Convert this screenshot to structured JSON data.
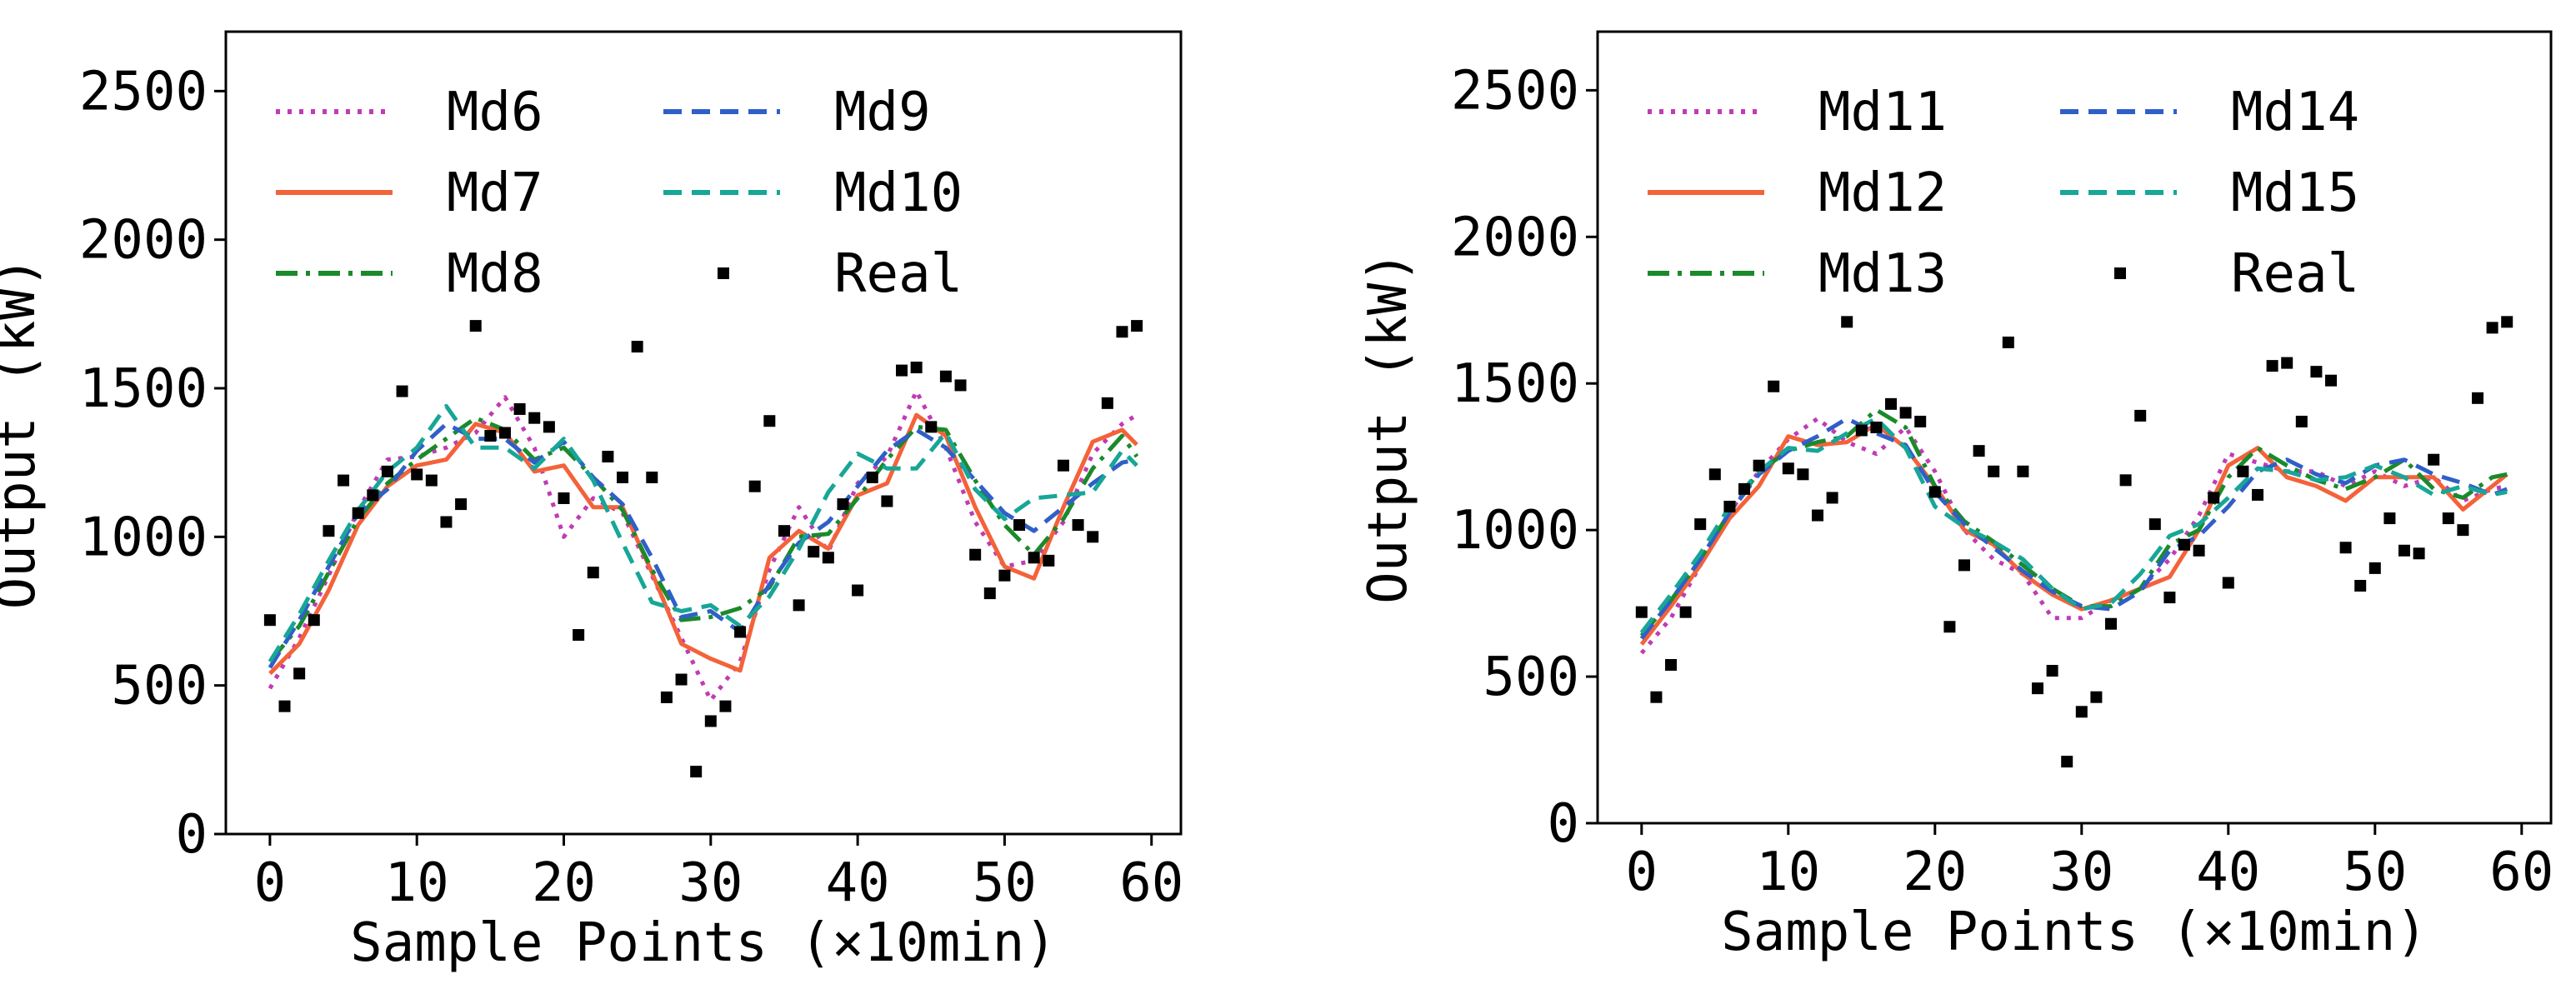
{
  "colors": {
    "Md6": "#c03bb5",
    "Md7": "#f4623a",
    "Md8": "#1a8a2a",
    "Md9": "#2f5fc8",
    "Md10": "#17a697",
    "Md11": "#c03bb5",
    "Md12": "#f4623a",
    "Md13": "#1a8a2a",
    "Md14": "#2f5fc8",
    "Md15": "#17a697",
    "Real": "#000000"
  },
  "chart_data": [
    {
      "type": "line",
      "title": "",
      "xlabel": "Sample Points (×10min)",
      "ylabel": "Output (kW)",
      "xlim": [
        -3,
        62
      ],
      "ylim": [
        0,
        2700
      ],
      "xticks": [
        "0",
        "10",
        "20",
        "30",
        "40",
        "50",
        "60"
      ],
      "yticks": [
        "0",
        "500",
        "1000",
        "1500",
        "2000",
        "2500"
      ],
      "grid": false,
      "legend": {
        "position": "top-left",
        "columns": 2,
        "entries": [
          {
            "label": "Md6",
            "style": "dotted"
          },
          {
            "label": "Md9",
            "style": "dashed"
          },
          {
            "label": "Md7",
            "style": "solid"
          },
          {
            "label": "Md10",
            "style": "dashed"
          },
          {
            "label": "Md8",
            "style": "dashdot"
          },
          {
            "label": "Real",
            "style": "marker"
          }
        ]
      },
      "scatter": {
        "name": "Real",
        "x": [
          0,
          1,
          2,
          3,
          4,
          5,
          6,
          7,
          8,
          9,
          10,
          11,
          12,
          13,
          14,
          15,
          16,
          17,
          18,
          19,
          20,
          21,
          22,
          23,
          24,
          25,
          26,
          27,
          28,
          29,
          30,
          31,
          32,
          33,
          34,
          35,
          36,
          37,
          38,
          39,
          40,
          41,
          42,
          43,
          44,
          45,
          46,
          47,
          48,
          49,
          50,
          51,
          52,
          53,
          54,
          55,
          56,
          57,
          58,
          59
        ],
        "y": [
          720,
          430,
          540,
          720,
          1020,
          1190,
          1080,
          1140,
          1220,
          1490,
          1210,
          1190,
          1050,
          1110,
          1710,
          1340,
          1350,
          1430,
          1400,
          1370,
          1130,
          670,
          880,
          1270,
          1200,
          1640,
          1200,
          460,
          520,
          210,
          380,
          430,
          680,
          1170,
          1390,
          1020,
          770,
          950,
          930,
          1110,
          820,
          1200,
          1120,
          1560,
          1570,
          1370,
          1540,
          1510,
          940,
          810,
          870,
          1040,
          930,
          920,
          1240,
          1040,
          1000,
          1450,
          1690,
          1710
        ]
      },
      "series": [
        {
          "name": "Md6",
          "style": "dotted",
          "x": [
            0,
            2,
            4,
            6,
            8,
            10,
            12,
            14,
            16,
            18,
            20,
            22,
            24,
            26,
            28,
            30,
            32,
            34,
            36,
            38,
            40,
            42,
            44,
            46,
            48,
            50,
            52,
            54,
            56,
            58,
            59
          ],
          "y": [
            490,
            660,
            870,
            1090,
            1260,
            1270,
            1300,
            1350,
            1470,
            1300,
            1000,
            1130,
            1080,
            870,
            660,
            450,
            580,
            890,
            1100,
            950,
            1180,
            1270,
            1490,
            1300,
            1050,
            900,
            920,
            1050,
            1280,
            1380,
            1410
          ]
        },
        {
          "name": "Md7",
          "style": "solid",
          "x": [
            0,
            2,
            4,
            6,
            8,
            10,
            12,
            14,
            16,
            18,
            20,
            22,
            24,
            26,
            28,
            30,
            32,
            34,
            36,
            38,
            40,
            42,
            44,
            46,
            48,
            50,
            52,
            54,
            56,
            58,
            59
          ],
          "y": [
            540,
            640,
            820,
            1040,
            1170,
            1240,
            1260,
            1380,
            1350,
            1220,
            1240,
            1100,
            1100,
            880,
            640,
            590,
            550,
            930,
            1020,
            960,
            1140,
            1180,
            1410,
            1340,
            1100,
            900,
            860,
            1100,
            1320,
            1360,
            1310
          ]
        },
        {
          "name": "Md8",
          "style": "dashdot",
          "x": [
            0,
            2,
            4,
            6,
            8,
            10,
            12,
            14,
            16,
            18,
            20,
            22,
            24,
            26,
            28,
            30,
            32,
            34,
            36,
            38,
            40,
            42,
            44,
            46,
            48,
            50,
            52,
            54,
            56,
            58,
            59
          ],
          "y": [
            580,
            700,
            880,
            1060,
            1180,
            1260,
            1330,
            1400,
            1360,
            1260,
            1300,
            1200,
            1090,
            890,
            720,
            730,
            760,
            830,
            1000,
            1010,
            1130,
            1260,
            1370,
            1360,
            1190,
            1040,
            940,
            1060,
            1230,
            1340,
            1270
          ]
        },
        {
          "name": "Md9",
          "style": "dashed",
          "x": [
            0,
            2,
            4,
            6,
            8,
            10,
            12,
            14,
            16,
            18,
            20,
            22,
            24,
            26,
            28,
            30,
            32,
            34,
            36,
            38,
            40,
            42,
            44,
            46,
            48,
            50,
            52,
            54,
            56,
            58,
            59
          ],
          "y": [
            560,
            720,
            900,
            1080,
            1160,
            1290,
            1380,
            1330,
            1330,
            1250,
            1320,
            1200,
            1110,
            930,
            730,
            750,
            680,
            840,
            980,
            1050,
            1170,
            1290,
            1360,
            1300,
            1190,
            1080,
            1020,
            1100,
            1180,
            1250,
            1260
          ]
        },
        {
          "name": "Md10",
          "style": "dashed",
          "x": [
            0,
            2,
            4,
            6,
            8,
            10,
            12,
            14,
            16,
            18,
            20,
            22,
            24,
            26,
            28,
            30,
            32,
            34,
            36,
            38,
            40,
            42,
            44,
            46,
            48,
            50,
            52,
            54,
            56,
            58,
            59
          ],
          "y": [
            580,
            740,
            920,
            1090,
            1220,
            1300,
            1440,
            1300,
            1300,
            1230,
            1330,
            1190,
            980,
            780,
            750,
            770,
            700,
            800,
            960,
            1150,
            1280,
            1230,
            1230,
            1350,
            1160,
            1060,
            1130,
            1140,
            1150,
            1290,
            1240
          ]
        }
      ]
    },
    {
      "type": "line",
      "title": "",
      "xlabel": "Sample Points (×10min)",
      "ylabel": "Output (kW)",
      "xlim": [
        -3,
        62
      ],
      "ylim": [
        0,
        2700
      ],
      "xticks": [
        "0",
        "10",
        "20",
        "30",
        "40",
        "50",
        "60"
      ],
      "yticks": [
        "0",
        "500",
        "1000",
        "1500",
        "2000",
        "2500"
      ],
      "grid": false,
      "legend": {
        "position": "top-left",
        "columns": 2,
        "entries": [
          {
            "label": "Md11",
            "style": "dotted"
          },
          {
            "label": "Md14",
            "style": "dashed"
          },
          {
            "label": "Md12",
            "style": "solid"
          },
          {
            "label": "Md15",
            "style": "dashed"
          },
          {
            "label": "Md13",
            "style": "dashdot"
          },
          {
            "label": "Real",
            "style": "marker"
          }
        ]
      },
      "scatter": {
        "name": "Real",
        "x": [
          0,
          1,
          2,
          3,
          4,
          5,
          6,
          7,
          8,
          9,
          10,
          11,
          12,
          13,
          14,
          15,
          16,
          17,
          18,
          19,
          20,
          21,
          22,
          23,
          24,
          25,
          26,
          27,
          28,
          29,
          30,
          31,
          32,
          33,
          34,
          35,
          36,
          37,
          38,
          39,
          40,
          41,
          42,
          43,
          44,
          45,
          46,
          47,
          48,
          49,
          50,
          51,
          52,
          53,
          54,
          55,
          56,
          57,
          58,
          59
        ],
        "y": [
          720,
          430,
          540,
          720,
          1020,
          1190,
          1080,
          1140,
          1220,
          1490,
          1210,
          1190,
          1050,
          1110,
          1710,
          1340,
          1350,
          1430,
          1400,
          1370,
          1130,
          670,
          880,
          1270,
          1200,
          1640,
          1200,
          460,
          520,
          210,
          380,
          430,
          680,
          1170,
          1390,
          1020,
          770,
          950,
          930,
          1110,
          820,
          1200,
          1120,
          1560,
          1570,
          1370,
          1540,
          1510,
          940,
          810,
          870,
          1040,
          930,
          920,
          1240,
          1040,
          1000,
          1450,
          1690,
          1710
        ]
      },
      "series": [
        {
          "name": "Md11",
          "style": "dotted",
          "x": [
            0,
            2,
            4,
            6,
            8,
            10,
            12,
            14,
            16,
            18,
            20,
            22,
            24,
            26,
            28,
            30,
            32,
            34,
            36,
            38,
            40,
            42,
            44,
            46,
            48,
            50,
            52,
            54,
            56,
            58,
            59
          ],
          "y": [
            580,
            700,
            880,
            1060,
            1200,
            1310,
            1380,
            1300,
            1260,
            1350,
            1200,
            1000,
            900,
            850,
            700,
            700,
            760,
            800,
            900,
            1050,
            1260,
            1230,
            1200,
            1200,
            1150,
            1200,
            1150,
            1180,
            1100,
            1140,
            1150
          ]
        },
        {
          "name": "Md12",
          "style": "solid",
          "x": [
            0,
            2,
            4,
            6,
            8,
            10,
            12,
            14,
            16,
            18,
            20,
            22,
            24,
            26,
            28,
            30,
            32,
            34,
            36,
            38,
            40,
            42,
            44,
            46,
            48,
            50,
            52,
            54,
            56,
            58,
            59
          ],
          "y": [
            610,
            740,
            880,
            1040,
            1150,
            1320,
            1290,
            1300,
            1360,
            1280,
            1150,
            1000,
            950,
            850,
            780,
            730,
            760,
            800,
            840,
            1000,
            1220,
            1280,
            1180,
            1150,
            1100,
            1180,
            1180,
            1180,
            1070,
            1150,
            1190
          ]
        },
        {
          "name": "Md13",
          "style": "dashdot",
          "x": [
            0,
            2,
            4,
            6,
            8,
            10,
            12,
            14,
            16,
            18,
            20,
            22,
            24,
            26,
            28,
            30,
            32,
            34,
            36,
            38,
            40,
            42,
            44,
            46,
            48,
            50,
            52,
            54,
            56,
            58,
            59
          ],
          "y": [
            640,
            760,
            900,
            1060,
            1200,
            1270,
            1300,
            1320,
            1410,
            1350,
            1150,
            1030,
            960,
            880,
            800,
            740,
            740,
            800,
            950,
            1000,
            1180,
            1280,
            1220,
            1170,
            1140,
            1180,
            1240,
            1140,
            1110,
            1180,
            1190
          ]
        },
        {
          "name": "Md14",
          "style": "dashed",
          "x": [
            0,
            2,
            4,
            6,
            8,
            10,
            12,
            14,
            16,
            18,
            20,
            22,
            24,
            26,
            28,
            30,
            32,
            34,
            36,
            38,
            40,
            42,
            44,
            46,
            48,
            50,
            52,
            54,
            56,
            58,
            59
          ],
          "y": [
            630,
            760,
            900,
            1060,
            1190,
            1270,
            1320,
            1380,
            1330,
            1290,
            1130,
            1020,
            940,
            860,
            790,
            740,
            730,
            790,
            930,
            980,
            1080,
            1200,
            1240,
            1190,
            1160,
            1220,
            1240,
            1190,
            1160,
            1120,
            1140
          ]
        },
        {
          "name": "Md15",
          "style": "dashed",
          "x": [
            0,
            2,
            4,
            6,
            8,
            10,
            12,
            14,
            16,
            18,
            20,
            22,
            24,
            26,
            28,
            30,
            32,
            34,
            36,
            38,
            40,
            42,
            44,
            46,
            48,
            50,
            52,
            54,
            56,
            58,
            59
          ],
          "y": [
            650,
            780,
            920,
            1080,
            1200,
            1280,
            1270,
            1330,
            1380,
            1280,
            1080,
            1010,
            960,
            900,
            800,
            730,
            750,
            850,
            980,
            1020,
            1110,
            1210,
            1200,
            1170,
            1180,
            1220,
            1180,
            1120,
            1150,
            1120,
            1130
          ]
        }
      ]
    }
  ]
}
